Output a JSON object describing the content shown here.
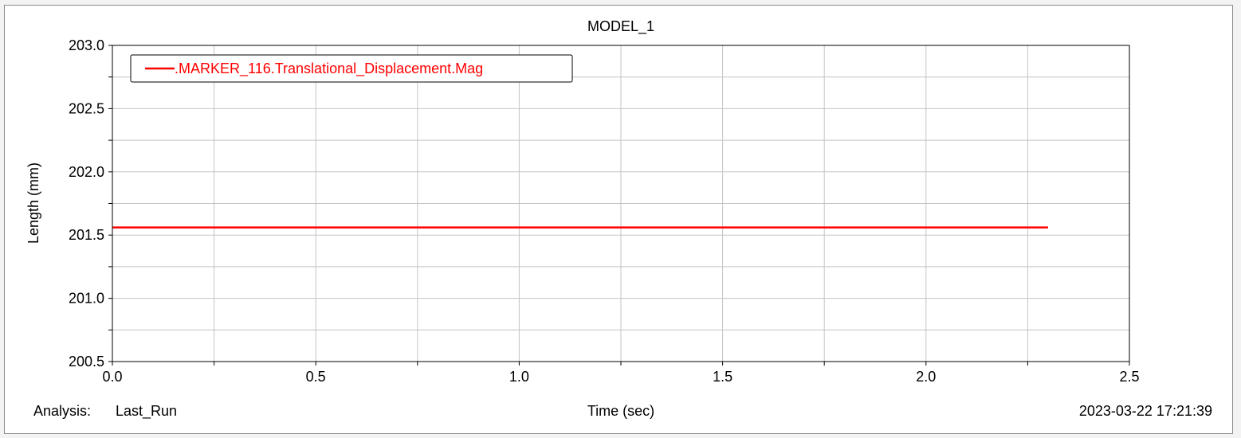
{
  "chart_data": {
    "type": "line",
    "title": "MODEL_1",
    "xlabel": "Time (sec)",
    "ylabel": "Length (mm)",
    "xlim": [
      0.0,
      2.5
    ],
    "ylim": [
      200.5,
      203.0
    ],
    "x_ticks": [
      "0.0",
      "0.5",
      "1.0",
      "1.5",
      "2.0",
      "2.5"
    ],
    "y_ticks": [
      "203.0",
      "202.5",
      "202.0",
      "201.5",
      "201.0",
      "200.5"
    ],
    "x_tick_values": [
      0.0,
      0.5,
      1.0,
      1.5,
      2.0,
      2.5
    ],
    "y_tick_values": [
      203.0,
      202.5,
      202.0,
      201.5,
      201.0,
      200.5
    ],
    "grid": true,
    "minor_grid_step_x": 0.25,
    "minor_grid_step_y": 0.25,
    "legend_position": "top-left",
    "series": [
      {
        "name": ".MARKER_116.Translational_Displacement.Mag",
        "color": "#ff0000",
        "x": [
          0.0,
          2.3
        ],
        "y": [
          201.56,
          201.56
        ]
      }
    ]
  },
  "footer": {
    "analysis_label": "Analysis:",
    "analysis_value": "Last_Run",
    "timestamp": "2023-03-22 17:21:39"
  }
}
